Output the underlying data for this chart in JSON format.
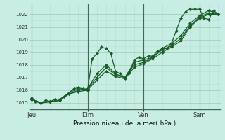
{
  "bg_color": "#c8eee4",
  "grid_color_minor": "#b8ddd4",
  "grid_color_major": "#99ccbb",
  "line_color": "#1a5c28",
  "marker_color": "#1a5c28",
  "xlabel": "Pression niveau de la mer( hPa )",
  "ylim": [
    1014.5,
    1022.8
  ],
  "yticks": [
    1015,
    1016,
    1017,
    1018,
    1019,
    1020,
    1021,
    1022
  ],
  "xtick_labels": [
    "Jeu",
    "Dim",
    "Ven",
    "Sam"
  ],
  "xtick_positions": [
    0,
    48,
    96,
    144
  ],
  "vlines_x": [
    0,
    48,
    96,
    144
  ],
  "series1_x": [
    0,
    3,
    8,
    12,
    16,
    20,
    24,
    28,
    32,
    36,
    40,
    44,
    48,
    52,
    56,
    60,
    64,
    68,
    72,
    76,
    80,
    84,
    88,
    92,
    96,
    100,
    104,
    108,
    112,
    116,
    120,
    124,
    128,
    132,
    136,
    140,
    144,
    148,
    152,
    156,
    160
  ],
  "series1_y": [
    1015.4,
    1015.1,
    1015.0,
    1015.2,
    1015.1,
    1015.3,
    1015.3,
    1015.5,
    1015.8,
    1016.1,
    1016.2,
    1016.1,
    1016.0,
    1018.5,
    1018.9,
    1019.4,
    1019.3,
    1018.9,
    1017.5,
    1017.3,
    1017.0,
    1017.4,
    1018.4,
    1018.6,
    1018.5,
    1018.7,
    1018.7,
    1019.1,
    1019.3,
    1019.3,
    1019.7,
    1020.7,
    1021.7,
    1022.2,
    1022.4,
    1022.4,
    1022.4,
    1021.7,
    1021.6,
    1022.3,
    1022.0
  ],
  "series2_x": [
    0,
    8,
    16,
    24,
    32,
    40,
    48,
    56,
    64,
    72,
    80,
    88,
    96,
    104,
    112,
    120,
    128,
    136,
    144,
    152,
    160
  ],
  "series2_y": [
    1015.3,
    1015.0,
    1015.1,
    1015.2,
    1015.7,
    1015.9,
    1016.0,
    1016.8,
    1017.5,
    1017.1,
    1016.9,
    1017.8,
    1018.1,
    1018.5,
    1019.0,
    1019.4,
    1019.9,
    1021.0,
    1021.7,
    1022.0,
    1022.0
  ],
  "series3_x": [
    0,
    8,
    16,
    24,
    32,
    40,
    48,
    56,
    64,
    72,
    80,
    88,
    96,
    104,
    112,
    120,
    128,
    136,
    144,
    152,
    160
  ],
  "series3_y": [
    1015.3,
    1015.0,
    1015.1,
    1015.2,
    1015.7,
    1016.0,
    1016.1,
    1017.0,
    1017.8,
    1017.2,
    1017.0,
    1018.0,
    1018.2,
    1018.6,
    1019.2,
    1019.5,
    1020.1,
    1021.1,
    1021.8,
    1022.1,
    1022.0
  ],
  "series4_x": [
    0,
    8,
    16,
    24,
    32,
    40,
    48,
    56,
    64,
    72,
    80,
    88,
    96,
    104,
    112,
    120,
    128,
    136,
    144,
    152,
    160
  ],
  "series4_y": [
    1015.3,
    1015.0,
    1015.1,
    1015.2,
    1015.8,
    1016.1,
    1016.1,
    1017.3,
    1018.0,
    1017.3,
    1017.0,
    1018.2,
    1018.4,
    1018.6,
    1019.3,
    1019.7,
    1020.3,
    1021.3,
    1021.9,
    1022.3,
    1022.0
  ],
  "figsize": [
    3.2,
    2.0
  ],
  "dpi": 100
}
